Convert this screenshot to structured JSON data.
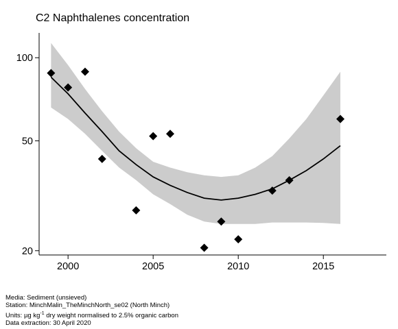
{
  "title": "C2 Naphthalenes concentration",
  "chart_data": {
    "type": "scatter",
    "title": "C2 Naphthalenes concentration",
    "xlabel": "",
    "ylabel": "",
    "y_scale": "log",
    "xlim": [
      1998.3,
      2018.7
    ],
    "ylim": [
      19.3,
      123
    ],
    "x_ticks": [
      2000,
      2005,
      2010,
      2015
    ],
    "y_ticks": [
      20,
      50,
      100
    ],
    "grid": false,
    "legend": "none",
    "points": {
      "x": [
        1999,
        2000,
        2001,
        2002,
        2004,
        2005,
        2006,
        2008,
        2009,
        2010,
        2012,
        2013,
        2016
      ],
      "y": [
        88,
        78,
        89,
        43,
        28,
        52,
        53,
        20.5,
        25.5,
        22,
        33,
        36,
        60
      ]
    },
    "trend": {
      "x": [
        1999,
        2000,
        2001,
        2002,
        2003,
        2004,
        2005,
        2006,
        2007,
        2008,
        2009,
        2010,
        2011,
        2012,
        2013,
        2014,
        2015,
        2016
      ],
      "y": [
        85,
        74,
        63,
        54,
        46,
        41,
        37,
        34.5,
        32.5,
        31,
        30.5,
        31,
        32,
        33.5,
        36,
        39,
        43,
        48
      ],
      "lower": [
        66,
        60,
        53,
        46,
        40,
        36,
        32,
        29.5,
        27,
        25.5,
        25,
        25,
        25,
        25.3,
        25.3,
        25.3,
        25.2,
        25
      ],
      "upper": [
        113,
        94,
        77,
        64,
        54,
        47,
        42,
        40,
        38.5,
        37.5,
        37,
        37.5,
        40,
        44,
        51,
        60,
        73,
        89
      ]
    },
    "colors": {
      "points": "#000000",
      "trend": "#000000",
      "band": "#cccccc"
    }
  },
  "footer": {
    "media_label": "Media:",
    "media": "Sediment (unsieved)",
    "station_label": "Station:",
    "station": "MinchMalin_TheMinchNorth_se02 (North Minch)",
    "units_label": "Units:",
    "units_pre": "µg kg",
    "units_sup": "-1",
    "units_post": "dry weight normalised to 2.5% organic carbon",
    "extraction_label": "Data extraction:",
    "extraction": "30 April 2020"
  }
}
